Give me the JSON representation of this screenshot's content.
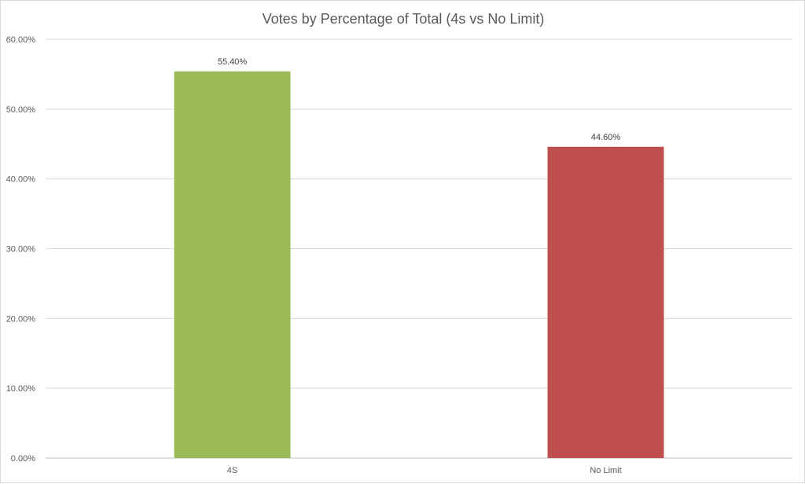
{
  "chart_data": {
    "type": "bar",
    "title": "Votes by Percentage of Total (4s vs No Limit)",
    "xlabel": "",
    "ylabel": "",
    "categories": [
      "4S",
      "No Limit"
    ],
    "values": [
      55.4,
      44.6
    ],
    "value_labels": [
      "55.40%",
      "44.60%"
    ],
    "bar_colors": [
      "#9bbb59",
      "#c0504d"
    ],
    "ylim": [
      0,
      60
    ],
    "yticks": [
      0,
      10,
      20,
      30,
      40,
      50,
      60
    ],
    "ytick_labels": [
      "0.00%",
      "10.00%",
      "20.00%",
      "30.00%",
      "40.00%",
      "50.00%",
      "60.00%"
    ],
    "grid": true,
    "legend": "none"
  }
}
